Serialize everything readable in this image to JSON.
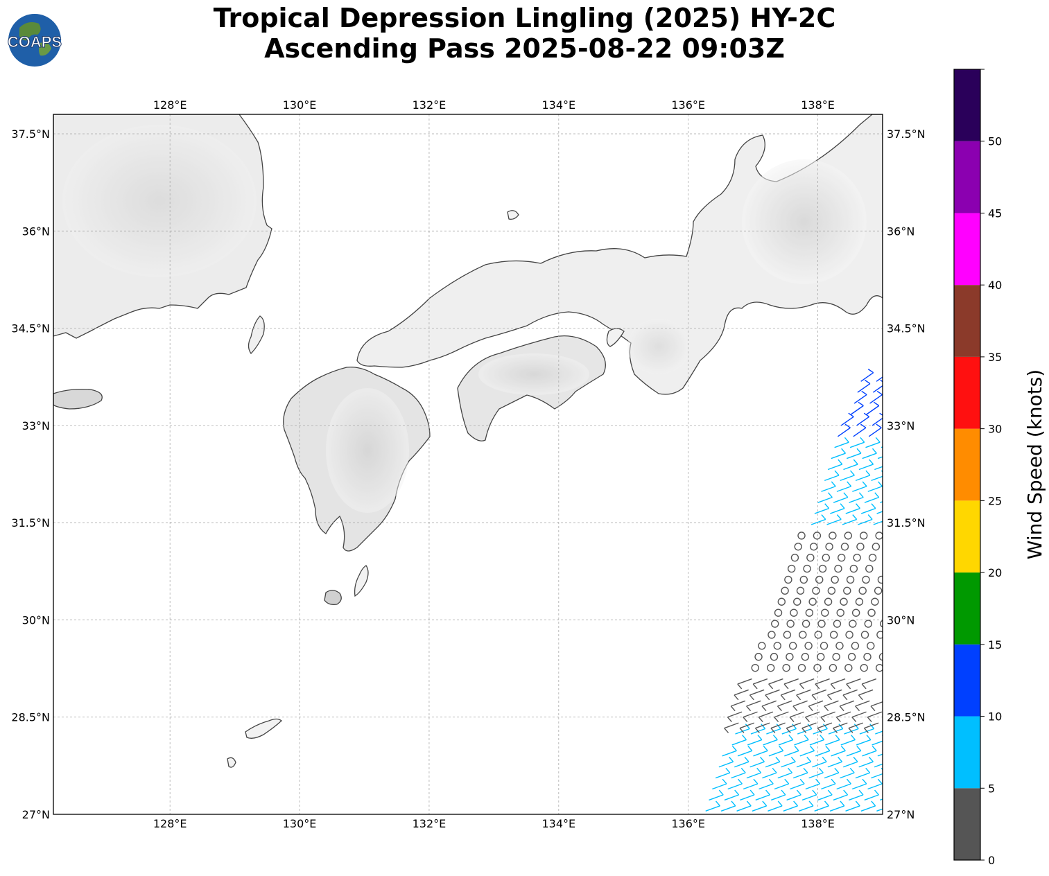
{
  "title": {
    "line1": "Tropical Depression Lingling (2025) HY-2C",
    "line2": "Ascending Pass 2025-08-22 09:03Z"
  },
  "logo": {
    "text": "COAPS",
    "icon": "globe-icon"
  },
  "map": {
    "lon_range": [
      126.2,
      139.0
    ],
    "lat_range": [
      27.0,
      37.8
    ],
    "lon_ticks": [
      {
        "value": 128,
        "label": "128°E"
      },
      {
        "value": 130,
        "label": "130°E"
      },
      {
        "value": 132,
        "label": "132°E"
      },
      {
        "value": 134,
        "label": "134°E"
      },
      {
        "value": 136,
        "label": "136°E"
      },
      {
        "value": 138,
        "label": "138°E"
      }
    ],
    "lat_ticks": [
      {
        "value": 27.0,
        "label": "27°N"
      },
      {
        "value": 28.5,
        "label": "28.5°N"
      },
      {
        "value": 30.0,
        "label": "30°N"
      },
      {
        "value": 31.5,
        "label": "31.5°N"
      },
      {
        "value": 33.0,
        "label": "33°N"
      },
      {
        "value": 34.5,
        "label": "34.5°N"
      },
      {
        "value": 36.0,
        "label": "36°N"
      },
      {
        "value": 37.5,
        "label": "37.5°N"
      }
    ],
    "grid": true,
    "background": "grayscale terrain",
    "land_outline_color": "#444444"
  },
  "colorbar": {
    "label": "Wind Speed (knots)",
    "bins": [
      {
        "min": 0,
        "max": 5,
        "color": "#555555"
      },
      {
        "min": 5,
        "max": 10,
        "color": "#00bfff"
      },
      {
        "min": 10,
        "max": 15,
        "color": "#0040ff"
      },
      {
        "min": 15,
        "max": 20,
        "color": "#009900"
      },
      {
        "min": 20,
        "max": 25,
        "color": "#ffd700"
      },
      {
        "min": 25,
        "max": 30,
        "color": "#ff8c00"
      },
      {
        "min": 30,
        "max": 35,
        "color": "#ff1010"
      },
      {
        "min": 35,
        "max": 40,
        "color": "#8b3a2a"
      },
      {
        "min": 40,
        "max": 45,
        "color": "#ff00ff"
      },
      {
        "min": 45,
        "max": 50,
        "color": "#8b00b0"
      },
      {
        "min": 50,
        "max": 55,
        "color": "#2a005a"
      }
    ],
    "ticks": [
      "0",
      "5",
      "10",
      "15",
      "20",
      "25",
      "30",
      "35",
      "40",
      "45",
      "50"
    ]
  },
  "wind_barbs": {
    "calm_marker": "circle",
    "bands": [
      {
        "lat_min": 32.7,
        "lat_max": 33.8,
        "speed_kt": 10
      },
      {
        "lat_min": 31.4,
        "lat_max": 32.7,
        "speed_kt": 7
      },
      {
        "lat_min": 29.2,
        "lat_max": 31.4,
        "speed_kt": 2
      },
      {
        "lat_min": 28.3,
        "lat_max": 29.2,
        "speed_kt": 4
      },
      {
        "lat_min": 27.0,
        "lat_max": 28.3,
        "speed_kt": 7
      }
    ]
  }
}
